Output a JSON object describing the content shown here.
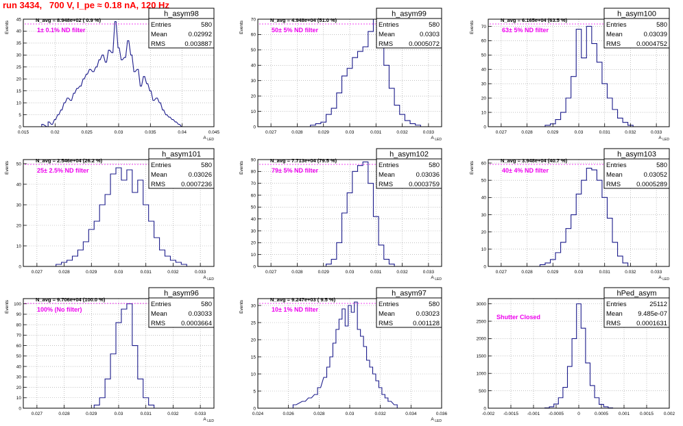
{
  "page": {
    "title": "run 3434,   700 V, I_pe ≈ 0.18 nA, 120 Hz"
  },
  "colors": {
    "hist": "#1a1a8a",
    "annotation": "#ee00ee",
    "title": "#ff0000",
    "grid": "#999999"
  },
  "chart_data": [
    {
      "type": "bar",
      "name": "h_asym98",
      "ylabel": "Events",
      "xlabel": "A_LED",
      "xlim": [
        0.015,
        0.045
      ],
      "ylim": [
        0,
        45
      ],
      "xticks": [
        0.015,
        0.02,
        0.025,
        0.03,
        0.035,
        0.04,
        0.045
      ],
      "yticks": [
        0,
        5,
        10,
        15,
        20,
        25,
        30,
        35,
        40,
        45
      ],
      "grid": true,
      "navg": "N_avg = 8.948e+02 ( 0.9 %)",
      "annotation": "1± 0.1% ND filter",
      "stats": {
        "entries": "580",
        "mean": "0.02992",
        "rms": "0.003887"
      },
      "bins": [
        [
          0.018,
          1
        ],
        [
          0.0188,
          0
        ],
        [
          0.019,
          2
        ],
        [
          0.0195,
          1
        ],
        [
          0.02,
          3
        ],
        [
          0.0205,
          5
        ],
        [
          0.021,
          7
        ],
        [
          0.0215,
          10
        ],
        [
          0.022,
          12
        ],
        [
          0.0225,
          11
        ],
        [
          0.023,
          14
        ],
        [
          0.0235,
          16
        ],
        [
          0.024,
          17
        ],
        [
          0.0245,
          20
        ],
        [
          0.025,
          22
        ],
        [
          0.0255,
          24
        ],
        [
          0.026,
          23
        ],
        [
          0.0265,
          25
        ],
        [
          0.027,
          28
        ],
        [
          0.0275,
          30
        ],
        [
          0.028,
          27
        ],
        [
          0.0285,
          32
        ],
        [
          0.029,
          31
        ],
        [
          0.0295,
          44
        ],
        [
          0.03,
          33
        ],
        [
          0.0305,
          28
        ],
        [
          0.031,
          29
        ],
        [
          0.0315,
          36
        ],
        [
          0.032,
          30
        ],
        [
          0.0325,
          23
        ],
        [
          0.033,
          24
        ],
        [
          0.0335,
          17
        ],
        [
          0.034,
          21
        ],
        [
          0.0345,
          18
        ],
        [
          0.035,
          15
        ],
        [
          0.0355,
          11
        ],
        [
          0.036,
          12
        ],
        [
          0.0365,
          10
        ],
        [
          0.037,
          7
        ],
        [
          0.0375,
          5
        ],
        [
          0.038,
          4
        ],
        [
          0.0385,
          3
        ],
        [
          0.039,
          2
        ],
        [
          0.0395,
          1
        ],
        [
          0.04,
          0
        ]
      ]
    },
    {
      "type": "bar",
      "name": "h_asym99",
      "ylabel": "Events",
      "xlabel": "A_LED",
      "xlim": [
        0.0265,
        0.0335
      ],
      "ylim": [
        0,
        70
      ],
      "xticks": [
        0.027,
        0.028,
        0.029,
        0.03,
        0.031,
        0.032,
        0.033
      ],
      "yticks": [
        0,
        10,
        20,
        30,
        40,
        50,
        60,
        70
      ],
      "grid": true,
      "navg": "N_avg = 4.948e+04 (51.0 %)",
      "annotation": "50± 5% ND filter",
      "stats": {
        "entries": "580",
        "mean": "0.0303",
        "rms": "0.0005072"
      },
      "bins": [
        [
          0.0286,
          1
        ],
        [
          0.0288,
          2
        ],
        [
          0.029,
          3
        ],
        [
          0.0292,
          8
        ],
        [
          0.0294,
          12
        ],
        [
          0.0296,
          22
        ],
        [
          0.0298,
          33
        ],
        [
          0.03,
          38
        ],
        [
          0.0302,
          45
        ],
        [
          0.0304,
          49
        ],
        [
          0.0306,
          52
        ],
        [
          0.0308,
          62
        ],
        [
          0.031,
          70
        ],
        [
          0.0312,
          55
        ],
        [
          0.0314,
          40
        ],
        [
          0.0316,
          25
        ],
        [
          0.0318,
          14
        ],
        [
          0.032,
          8
        ],
        [
          0.0322,
          4
        ],
        [
          0.0324,
          2
        ],
        [
          0.0326,
          1
        ]
      ]
    },
    {
      "type": "bar",
      "name": "h_asym100",
      "ylabel": "Events",
      "xlabel": "A_LED",
      "xlim": [
        0.0265,
        0.0335
      ],
      "ylim": [
        0,
        75
      ],
      "xticks": [
        0.027,
        0.028,
        0.029,
        0.03,
        0.031,
        0.032,
        0.033
      ],
      "yticks": [
        0,
        10,
        20,
        30,
        40,
        50,
        60,
        70
      ],
      "grid": true,
      "navg": "N_avg = 6.165e+04 (63.5 %)",
      "annotation": "63± 5% ND filter",
      "stats": {
        "entries": "580",
        "mean": "0.03039",
        "rms": "0.0004752"
      },
      "bins": [
        [
          0.0288,
          1
        ],
        [
          0.029,
          2
        ],
        [
          0.0292,
          5
        ],
        [
          0.0294,
          10
        ],
        [
          0.0296,
          20
        ],
        [
          0.0298,
          35
        ],
        [
          0.03,
          68
        ],
        [
          0.0302,
          48
        ],
        [
          0.0304,
          70
        ],
        [
          0.0306,
          58
        ],
        [
          0.0308,
          45
        ],
        [
          0.031,
          30
        ],
        [
          0.0312,
          20
        ],
        [
          0.0314,
          12
        ],
        [
          0.0316,
          6
        ],
        [
          0.0318,
          3
        ],
        [
          0.032,
          1
        ]
      ]
    },
    {
      "type": "bar",
      "name": "h_asym101",
      "ylabel": "Events",
      "xlabel": "A_LED",
      "xlim": [
        0.0265,
        0.0335
      ],
      "ylim": [
        0,
        52
      ],
      "xticks": [
        0.027,
        0.028,
        0.029,
        0.03,
        0.031,
        0.032,
        0.033
      ],
      "yticks": [
        0,
        10,
        20,
        30,
        40,
        50
      ],
      "grid": true,
      "navg": "N_avg = 2.546e+04 (26.2 %)",
      "annotation": "25± 2.5% ND filter",
      "stats": {
        "entries": "580",
        "mean": "0.03026",
        "rms": "0.0007236"
      },
      "bins": [
        [
          0.0278,
          1
        ],
        [
          0.028,
          2
        ],
        [
          0.0282,
          3
        ],
        [
          0.0284,
          5
        ],
        [
          0.0286,
          8
        ],
        [
          0.0288,
          12
        ],
        [
          0.029,
          18
        ],
        [
          0.0292,
          22
        ],
        [
          0.0294,
          30
        ],
        [
          0.0296,
          35
        ],
        [
          0.0298,
          45
        ],
        [
          0.03,
          48
        ],
        [
          0.0302,
          42
        ],
        [
          0.0304,
          47
        ],
        [
          0.0306,
          36
        ],
        [
          0.0308,
          42
        ],
        [
          0.031,
          30
        ],
        [
          0.0312,
          22
        ],
        [
          0.0314,
          14
        ],
        [
          0.0316,
          8
        ],
        [
          0.0318,
          5
        ],
        [
          0.032,
          3
        ],
        [
          0.0322,
          2
        ],
        [
          0.0324,
          1
        ]
      ]
    },
    {
      "type": "bar",
      "name": "h_asym102",
      "ylabel": "Events",
      "xlabel": "A_LED",
      "xlim": [
        0.0265,
        0.0335
      ],
      "ylim": [
        0,
        90
      ],
      "xticks": [
        0.027,
        0.028,
        0.029,
        0.03,
        0.031,
        0.032,
        0.033
      ],
      "yticks": [
        0,
        10,
        20,
        30,
        40,
        50,
        60,
        70,
        80,
        90
      ],
      "grid": true,
      "navg": "N_avg = 7.713e+04 (79.5 %)",
      "annotation": "79± 5% ND filter",
      "stats": {
        "entries": "580",
        "mean": "0.03036",
        "rms": "0.0003759"
      },
      "bins": [
        [
          0.0292,
          2
        ],
        [
          0.0294,
          6
        ],
        [
          0.0296,
          20
        ],
        [
          0.0298,
          45
        ],
        [
          0.03,
          62
        ],
        [
          0.0302,
          80
        ],
        [
          0.0304,
          85
        ],
        [
          0.0306,
          88
        ],
        [
          0.0308,
          70
        ],
        [
          0.031,
          42
        ],
        [
          0.0312,
          18
        ],
        [
          0.0314,
          6
        ],
        [
          0.0316,
          2
        ]
      ]
    },
    {
      "type": "bar",
      "name": "h_asym103",
      "ylabel": "Events",
      "xlabel": "A_LED",
      "xlim": [
        0.0265,
        0.0335
      ],
      "ylim": [
        0,
        62
      ],
      "xticks": [
        0.027,
        0.028,
        0.029,
        0.03,
        0.031,
        0.032,
        0.033
      ],
      "yticks": [
        0,
        10,
        20,
        30,
        40,
        50,
        60
      ],
      "grid": true,
      "navg": "N_avg = 3.948e+04 (40.7 %)",
      "annotation": "40± 4% ND filter",
      "stats": {
        "entries": "580",
        "mean": "0.03052",
        "rms": "0.0005289"
      },
      "bins": [
        [
          0.0286,
          1
        ],
        [
          0.0288,
          2
        ],
        [
          0.029,
          4
        ],
        [
          0.0292,
          8
        ],
        [
          0.0294,
          14
        ],
        [
          0.0296,
          22
        ],
        [
          0.0298,
          30
        ],
        [
          0.03,
          42
        ],
        [
          0.0302,
          50
        ],
        [
          0.0304,
          57
        ],
        [
          0.0306,
          56
        ],
        [
          0.0308,
          50
        ],
        [
          0.031,
          40
        ],
        [
          0.0312,
          28
        ],
        [
          0.0314,
          14
        ],
        [
          0.0316,
          6
        ],
        [
          0.0318,
          2
        ]
      ]
    },
    {
      "type": "bar",
      "name": "h_asym96",
      "ylabel": "Events",
      "xlabel": "A_LED",
      "xlim": [
        0.0265,
        0.0335
      ],
      "ylim": [
        0,
        105
      ],
      "xticks": [
        0.027,
        0.028,
        0.029,
        0.03,
        0.031,
        0.032,
        0.033
      ],
      "yticks": [
        0,
        10,
        20,
        30,
        40,
        50,
        60,
        70,
        80,
        90,
        100
      ],
      "grid": true,
      "navg": "N_avg = 9.706e+04 (100.0 %)",
      "annotation": "100% (No filter)",
      "stats": {
        "entries": "580",
        "mean": "0.03033",
        "rms": "0.0003664"
      },
      "bins": [
        [
          0.0292,
          3
        ],
        [
          0.0294,
          10
        ],
        [
          0.0296,
          28
        ],
        [
          0.0298,
          52
        ],
        [
          0.03,
          82
        ],
        [
          0.0302,
          95
        ],
        [
          0.0304,
          100
        ],
        [
          0.0306,
          60
        ],
        [
          0.0308,
          28
        ],
        [
          0.031,
          10
        ],
        [
          0.0312,
          3
        ]
      ]
    },
    {
      "type": "bar",
      "name": "h_asym97",
      "ylabel": "Events",
      "xlabel": "A_LED",
      "xlim": [
        0.024,
        0.036
      ],
      "ylim": [
        0,
        32
      ],
      "xticks": [
        0.024,
        0.026,
        0.028,
        0.03,
        0.032,
        0.034,
        0.036
      ],
      "yticks": [
        0,
        5,
        10,
        15,
        20,
        25,
        30
      ],
      "grid": true,
      "navg": "N_avg = 9.247e+03 ( 9.5 %)",
      "annotation": "10± 1% ND filter",
      "stats": {
        "entries": "580",
        "mean": "0.03023",
        "rms": "0.001128"
      },
      "bins": [
        [
          0.0264,
          1
        ],
        [
          0.027,
          2
        ],
        [
          0.0274,
          3
        ],
        [
          0.0278,
          4
        ],
        [
          0.028,
          6
        ],
        [
          0.0284,
          9
        ],
        [
          0.0286,
          12
        ],
        [
          0.0288,
          15
        ],
        [
          0.029,
          19
        ],
        [
          0.0292,
          23
        ],
        [
          0.0294,
          26
        ],
        [
          0.0296,
          29
        ],
        [
          0.0298,
          24
        ],
        [
          0.03,
          30
        ],
        [
          0.0302,
          28
        ],
        [
          0.0304,
          31
        ],
        [
          0.0306,
          23
        ],
        [
          0.0308,
          21
        ],
        [
          0.031,
          18
        ],
        [
          0.0312,
          14
        ],
        [
          0.0314,
          12
        ],
        [
          0.0316,
          10
        ],
        [
          0.0318,
          8
        ],
        [
          0.032,
          6
        ],
        [
          0.0322,
          4
        ],
        [
          0.0324,
          3
        ],
        [
          0.0326,
          2
        ],
        [
          0.033,
          1
        ]
      ]
    },
    {
      "type": "bar",
      "name": "hPed_asym",
      "xlim": [
        -0.002,
        0.002
      ],
      "ylim": [
        0,
        3150
      ],
      "xticks": [
        -0.002,
        -0.0015,
        -0.001,
        -0.0005,
        0,
        0.0005,
        0.001,
        0.0015,
        0.002
      ],
      "yticks": [
        0,
        500,
        1000,
        1500,
        2000,
        2500,
        3000
      ],
      "grid": true,
      "annotation": "Shutter Closed",
      "stats": {
        "entries": "25112",
        "mean": "9.485e-07",
        "rms": "0.0001631"
      },
      "bins": [
        [
          -0.0007,
          10
        ],
        [
          -0.0006,
          40
        ],
        [
          -0.0005,
          120
        ],
        [
          -0.0004,
          300
        ],
        [
          -0.0003,
          600
        ],
        [
          -0.0002,
          1200
        ],
        [
          -0.0001,
          2000
        ],
        [
          0,
          3000
        ],
        [
          0.0001,
          2300
        ],
        [
          0.0002,
          1300
        ],
        [
          0.0003,
          650
        ],
        [
          0.0004,
          300
        ],
        [
          0.0005,
          110
        ],
        [
          0.0006,
          40
        ],
        [
          0.0007,
          10
        ]
      ]
    }
  ]
}
